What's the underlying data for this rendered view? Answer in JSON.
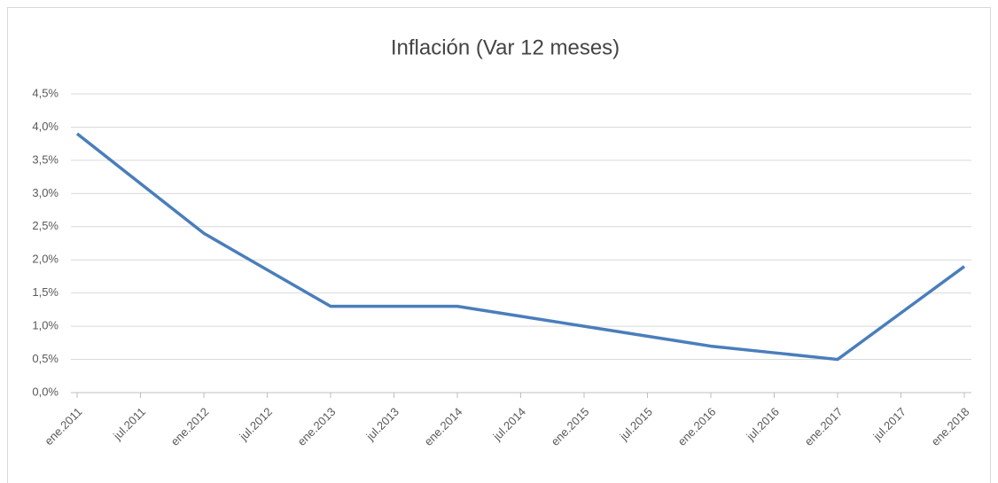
{
  "chart_data": {
    "type": "line",
    "title": "Inflación (Var 12 meses)",
    "categories": [
      "ene.2011",
      "jul.2011",
      "ene.2012",
      "jul.2012",
      "ene.2013",
      "jul.2013",
      "ene.2014",
      "jul.2014",
      "ene.2015",
      "jul.2015",
      "ene.2016",
      "jul.2016",
      "ene.2017",
      "jul.2017",
      "ene.2018"
    ],
    "series": [
      {
        "color": "#4a7ebb",
        "values": [
          3.9,
          3.15,
          2.4,
          1.85,
          1.3,
          1.3,
          1.3,
          1.15,
          1.0,
          0.85,
          0.7,
          0.6,
          0.5,
          1.2,
          1.9
        ]
      }
    ],
    "ylim": [
      0,
      4.5
    ],
    "yticks": [
      {
        "value": 0,
        "label": "0,0%"
      },
      {
        "value": 0.5,
        "label": "0,5%"
      },
      {
        "value": 1,
        "label": "1,0%"
      },
      {
        "value": 1.5,
        "label": "1,5%"
      },
      {
        "value": 2,
        "label": "2,0%"
      },
      {
        "value": 2.5,
        "label": "2,5%"
      },
      {
        "value": 3,
        "label": "3,0%"
      },
      {
        "value": 3.5,
        "label": "3,5%"
      },
      {
        "value": 4,
        "label": "4,0%"
      },
      {
        "value": 4.5,
        "label": "4,5%"
      }
    ],
    "grid": true
  }
}
